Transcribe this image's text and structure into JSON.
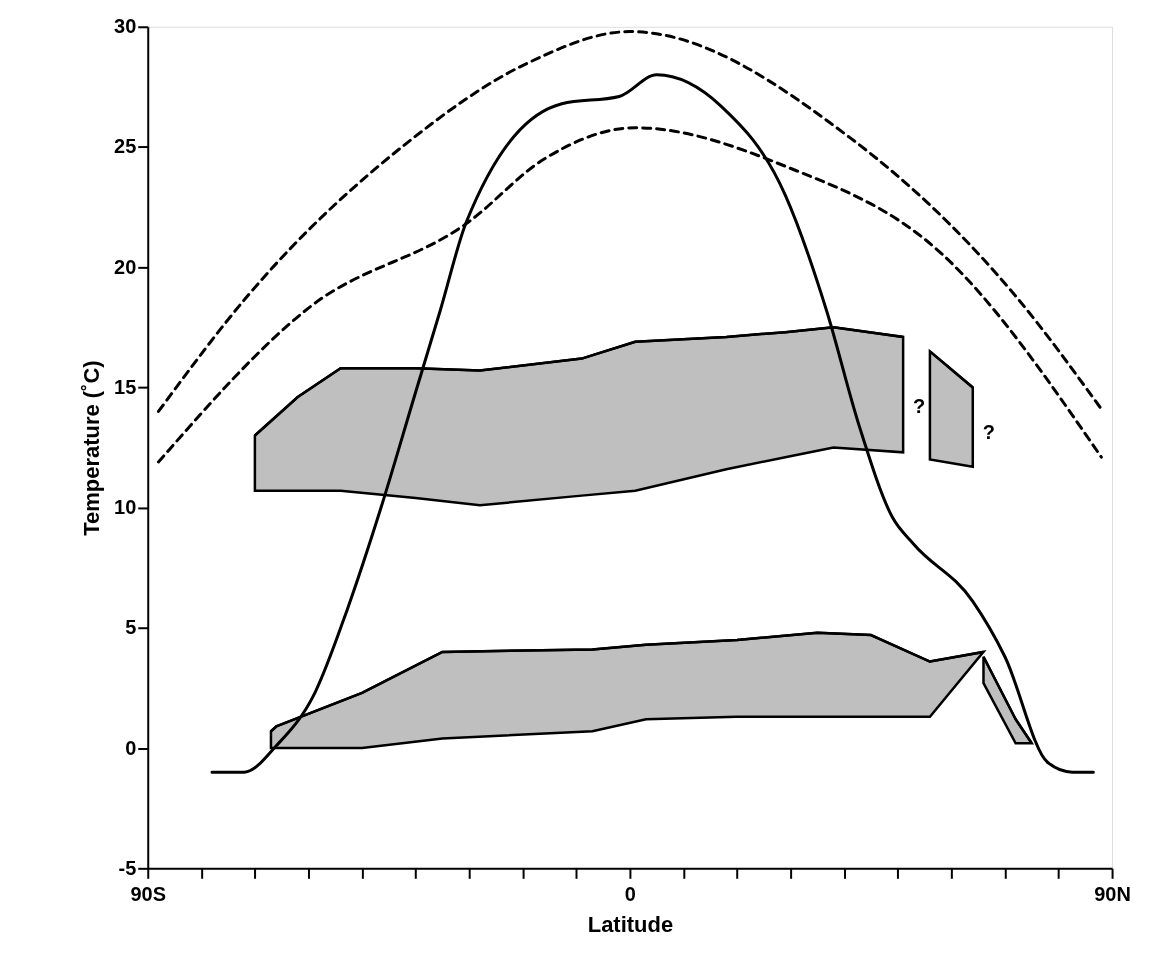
{
  "chart_data": {
    "type": "line",
    "xlabel": "Latitude",
    "ylabel": "Temperature (˚C)",
    "xlim": [
      -90,
      90
    ],
    "ylim": [
      -5,
      30
    ],
    "xticks": [
      {
        "value": -90,
        "label": "90S"
      },
      {
        "value": -80,
        "label": null
      },
      {
        "value": -70,
        "label": null
      },
      {
        "value": -60,
        "label": null
      },
      {
        "value": -50,
        "label": null
      },
      {
        "value": -40,
        "label": null
      },
      {
        "value": -30,
        "label": null
      },
      {
        "value": -20,
        "label": null
      },
      {
        "value": -10,
        "label": null
      },
      0,
      {
        "value": 10,
        "label": null
      },
      {
        "value": 20,
        "label": null
      },
      {
        "value": 30,
        "label": null
      },
      {
        "value": 40,
        "label": null
      },
      {
        "value": 50,
        "label": null
      },
      {
        "value": 60,
        "label": null
      },
      {
        "value": 70,
        "label": null
      },
      {
        "value": 80,
        "label": null
      },
      {
        "value": 90,
        "label": "90N"
      }
    ],
    "yticks": [
      -5,
      0,
      5,
      10,
      15,
      20,
      25,
      30
    ],
    "grid": false,
    "series": [
      {
        "type": "line",
        "color": "#000000",
        "x": [
          -70,
          -62,
          -54,
          -40,
          -28,
          -9,
          1,
          18,
          29,
          38,
          51
        ],
        "values": [
          13.0,
          14.6,
          15.8,
          15.8,
          15.7,
          16.2,
          16.9,
          17.1,
          17.3,
          17.5,
          17.1
        ],
        "upper": [
          13.0,
          14.6,
          15.8,
          15.8,
          15.7,
          16.2,
          16.9,
          17.1,
          17.3,
          17.5,
          17.1
        ],
        "lower": [
          10.7,
          10.7,
          10.7,
          10.4,
          10.1,
          10.5,
          10.7,
          11.6,
          12.1,
          12.5,
          12.3
        ]
      },
      {
        "type": "line",
        "color": "#000000",
        "x": [
          56,
          64
        ],
        "values": [
          16.5,
          15.0
        ],
        "upper": [
          16.5,
          15.0
        ],
        "lower": [
          12.0,
          11.7
        ]
      },
      {
        "type": "line",
        "color": "#000000",
        "x": [
          -67,
          -66,
          -50,
          -35,
          -7,
          3,
          20,
          35,
          45,
          56,
          66
        ],
        "values": [
          0.7,
          0.9,
          2.3,
          4.0,
          4.1,
          4.3,
          4.5,
          4.8,
          4.7,
          3.6,
          4.0
        ],
        "upper": [
          0.7,
          0.9,
          2.3,
          4.0,
          4.1,
          4.3,
          4.5,
          4.8,
          4.7,
          3.6,
          4.0
        ],
        "lower": [
          0.0,
          0.0,
          0.0,
          0.4,
          0.7,
          1.2,
          1.3,
          1.3,
          1.3,
          1.3,
          4.0
        ]
      },
      {
        "type": "line",
        "color": "#000000",
        "x": [
          66,
          72,
          75
        ],
        "values": [
          3.8,
          1.2,
          0.2
        ],
        "upper": [
          3.8,
          1.2,
          0.2
        ],
        "lower": [
          2.7,
          0.2,
          0.2
        ]
      },
      {
        "type": "line",
        "color": "#000000",
        "line_style": "dashed",
        "x": [
          -88,
          -71,
          -42,
          -19,
          0,
          41,
          72,
          88
        ],
        "values": [
          14.0,
          18.9,
          25.1,
          28.5,
          29.8,
          25.4,
          18.8,
          14.1
        ]
      },
      {
        "type": "line",
        "color": "#000000",
        "line_style": "dashed",
        "x": [
          -88,
          -60,
          -30,
          -16,
          1,
          29,
          58,
          88
        ],
        "values": [
          11.9,
          18.3,
          21.9,
          24.5,
          25.8,
          24.2,
          20.6,
          12.1
        ]
      },
      {
        "type": "line",
        "color": "#000000",
        "line_style": "solid",
        "x": [
          -78,
          -72,
          -66,
          -58.8,
          -52.7,
          -46.6,
          -40,
          -35.4,
          -30.5,
          -12.7,
          -2,
          5,
          17,
          29,
          36.7,
          42.8,
          49,
          52.9,
          64,
          70,
          78,
          82.6,
          86.5
        ],
        "values": [
          -1.0,
          -1.0,
          0.1,
          2.3,
          5.8,
          9.9,
          14.8,
          18.2,
          21.9,
          26.8,
          27.1,
          28.0,
          26.7,
          23.0,
          18.2,
          13.4,
          9.6,
          8.5,
          6.1,
          3.8,
          -0.6,
          -1.0,
          -1.0
        ]
      }
    ],
    "annotations": [
      {
        "text": "?",
        "x": 51,
        "y": 14.2
      },
      {
        "text": "?",
        "x": 64,
        "y": 13.1
      }
    ]
  }
}
